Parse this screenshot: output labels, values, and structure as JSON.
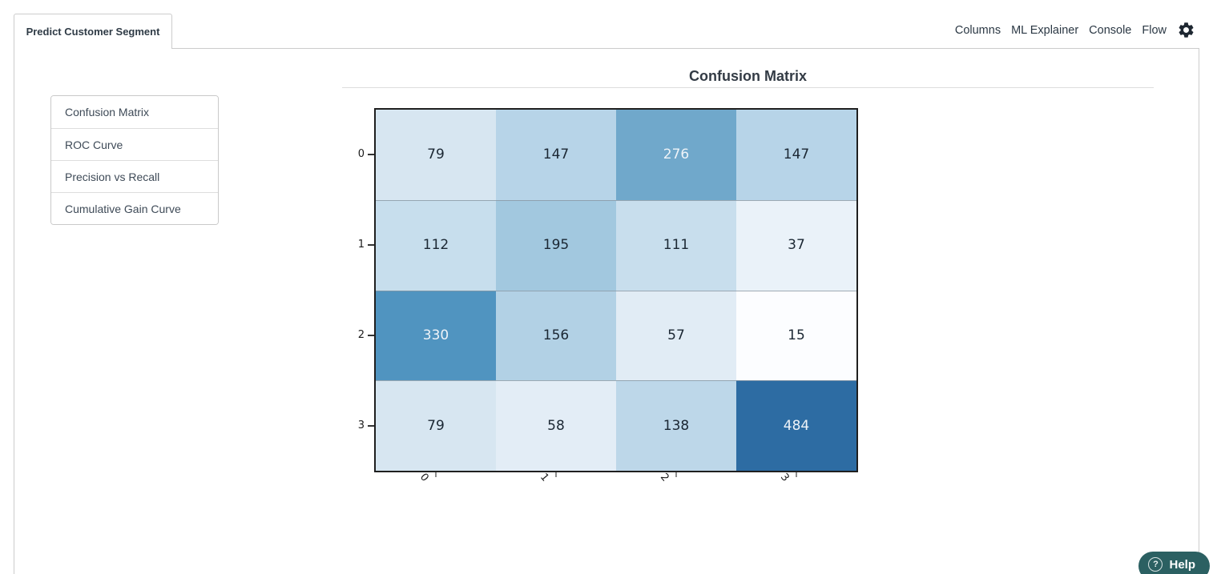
{
  "tab": {
    "label": "Predict Customer Segment"
  },
  "menu": {
    "items": [
      "Columns",
      "ML Explainer",
      "Console",
      "Flow"
    ],
    "gear_icon": "gear-icon"
  },
  "sidebar": {
    "items": [
      "Confusion Matrix",
      "ROC Curve",
      "Precision vs Recall",
      "Cumulative Gain Curve"
    ]
  },
  "chart_data": {
    "type": "heatmap",
    "title": "Confusion Matrix",
    "x_tick_labels": [
      "0",
      "1",
      "2",
      "3"
    ],
    "y_tick_labels": [
      "0",
      "1",
      "2",
      "3"
    ],
    "rows": [
      [
        79,
        147,
        276,
        147
      ],
      [
        112,
        195,
        111,
        37
      ],
      [
        330,
        156,
        57,
        15
      ],
      [
        79,
        58,
        138,
        484
      ]
    ],
    "cell_colors": [
      [
        "#d7e6f1",
        "#b7d4e8",
        "#70a8cb",
        "#b7d4e8"
      ],
      [
        "#c7deed",
        "#a2c8df",
        "#c8deed",
        "#eaf2f9"
      ],
      [
        "#5094c0",
        "#b2d1e5",
        "#e1ecf5",
        "#fcfdff"
      ],
      [
        "#d7e6f1",
        "#e3edf6",
        "#bdd7e9",
        "#2d6ca3"
      ]
    ],
    "colormap": "Blues",
    "value_min": 15,
    "value_max": 484,
    "legend": "none",
    "grid": "horizontal-row-dividers"
  },
  "help": {
    "label": "Help",
    "icon": "question-mark",
    "background": "#2b6062"
  },
  "colors": {
    "panel_border": "#cccccc",
    "heatmap_border": "#1f1f1f",
    "row_divider": "#8897a2",
    "dark_cell_text": "#eef3f8",
    "light_cell_text": "#1b2733"
  }
}
